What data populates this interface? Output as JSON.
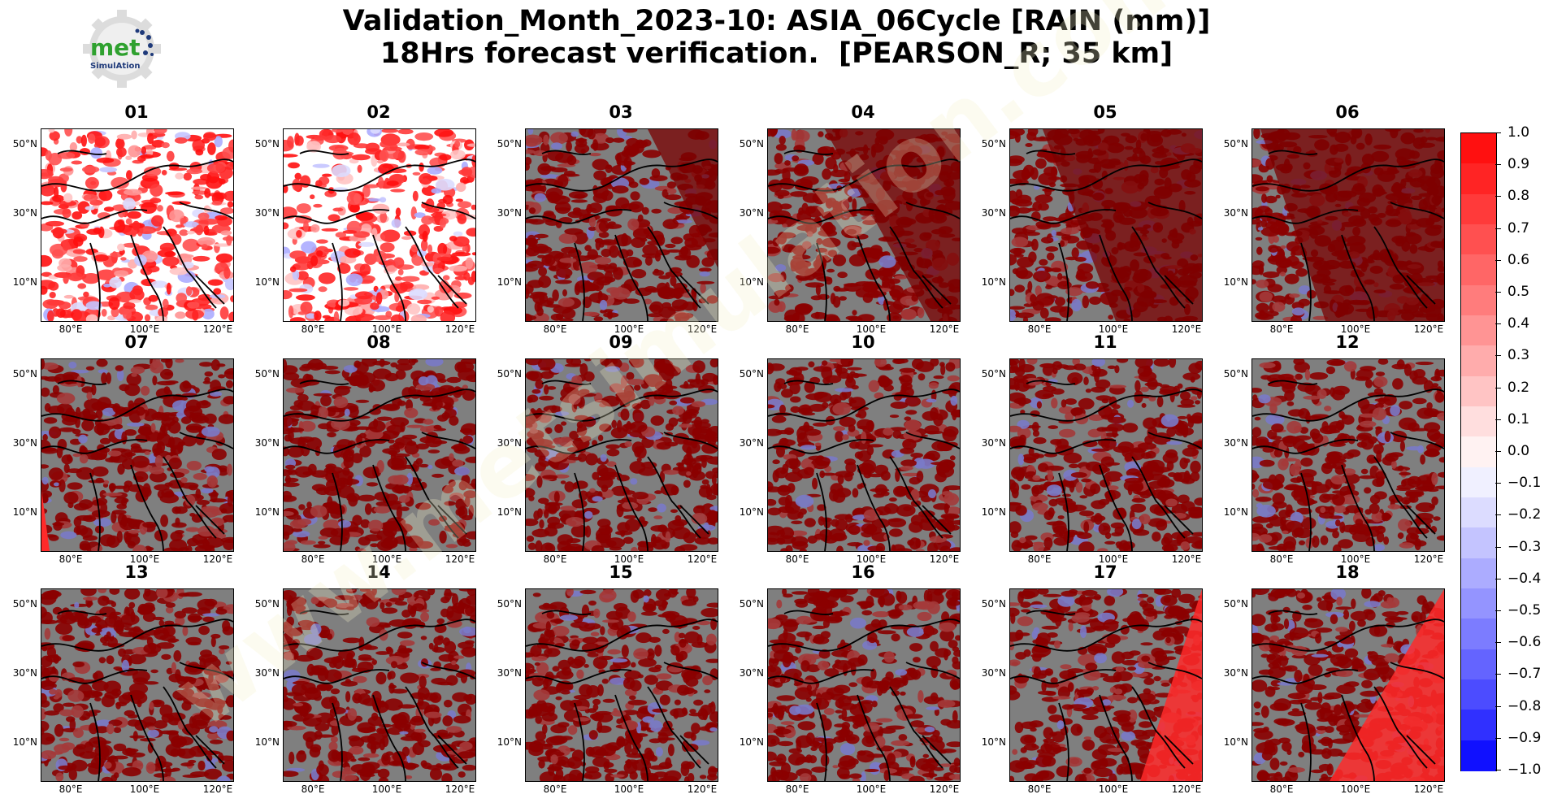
{
  "header": {
    "title_line1": "Validation_Month_2023-10: ASIA_06Cycle [RAIN (mm)]",
    "title_line2": "18Hrs forecast verification.  [PEARSON_R; 35 km]"
  },
  "logo": {
    "text": "met",
    "subtext": "SimulAtion",
    "icon": "gear-logo-icon",
    "colors": {
      "met": "#2fa12f",
      "sub": "#1f3a7a",
      "gear": "#d9d9d9",
      "dots": "#1f3a7a"
    }
  },
  "watermark": {
    "text": "www.metsimulation.com",
    "color": "#f3f0c8"
  },
  "chart_data": {
    "type": "heatmap",
    "layout": "3 rows x 6 columns of map panels",
    "panels": [
      {
        "label": "01",
        "coverage": "full"
      },
      {
        "label": "02",
        "coverage": "full"
      },
      {
        "label": "03",
        "coverage": "masked east corner"
      },
      {
        "label": "04",
        "coverage": "masked east"
      },
      {
        "label": "05",
        "coverage": "masked east"
      },
      {
        "label": "06",
        "coverage": "masked east"
      },
      {
        "label": "07",
        "coverage": "masked"
      },
      {
        "label": "08",
        "coverage": "masked"
      },
      {
        "label": "09",
        "coverage": "masked"
      },
      {
        "label": "10",
        "coverage": "masked"
      },
      {
        "label": "11",
        "coverage": "masked"
      },
      {
        "label": "12",
        "coverage": "masked"
      },
      {
        "label": "13",
        "coverage": "masked"
      },
      {
        "label": "14",
        "coverage": "masked"
      },
      {
        "label": "15",
        "coverage": "masked"
      },
      {
        "label": "16",
        "coverage": "masked"
      },
      {
        "label": "17",
        "coverage": "masked west"
      },
      {
        "label": "18",
        "coverage": "masked west"
      }
    ],
    "lat_ticks": [
      "50°N",
      "30°N",
      "10°N"
    ],
    "lon_ticks": [
      "80°E",
      "100°E",
      "120°E"
    ],
    "colorbar": {
      "min": -1.0,
      "max": 1.0,
      "step": 0.1,
      "tick_labels": [
        "1.0",
        "0.9",
        "0.8",
        "0.7",
        "0.6",
        "0.5",
        "0.4",
        "0.3",
        "0.2",
        "0.1",
        "0.0",
        "−0.1",
        "−0.2",
        "−0.3",
        "−0.4",
        "−0.5",
        "−0.6",
        "−0.7",
        "−0.8",
        "−0.9",
        "−1.0"
      ],
      "colors_top_to_bottom": [
        "#ff1010",
        "#ff2424",
        "#ff3a3a",
        "#ff5050",
        "#ff6666",
        "#ff7c7c",
        "#ff9494",
        "#ffacac",
        "#ffc4c4",
        "#ffdede",
        "#fff2f2",
        "#f0f0ff",
        "#dcdcff",
        "#c4c4ff",
        "#acacff",
        "#9494ff",
        "#7c7cff",
        "#6464ff",
        "#4c4cff",
        "#3030ff",
        "#1010ff"
      ]
    },
    "mask_color": "#7f7f7f",
    "mask_overlay_color": "#8b0000"
  }
}
